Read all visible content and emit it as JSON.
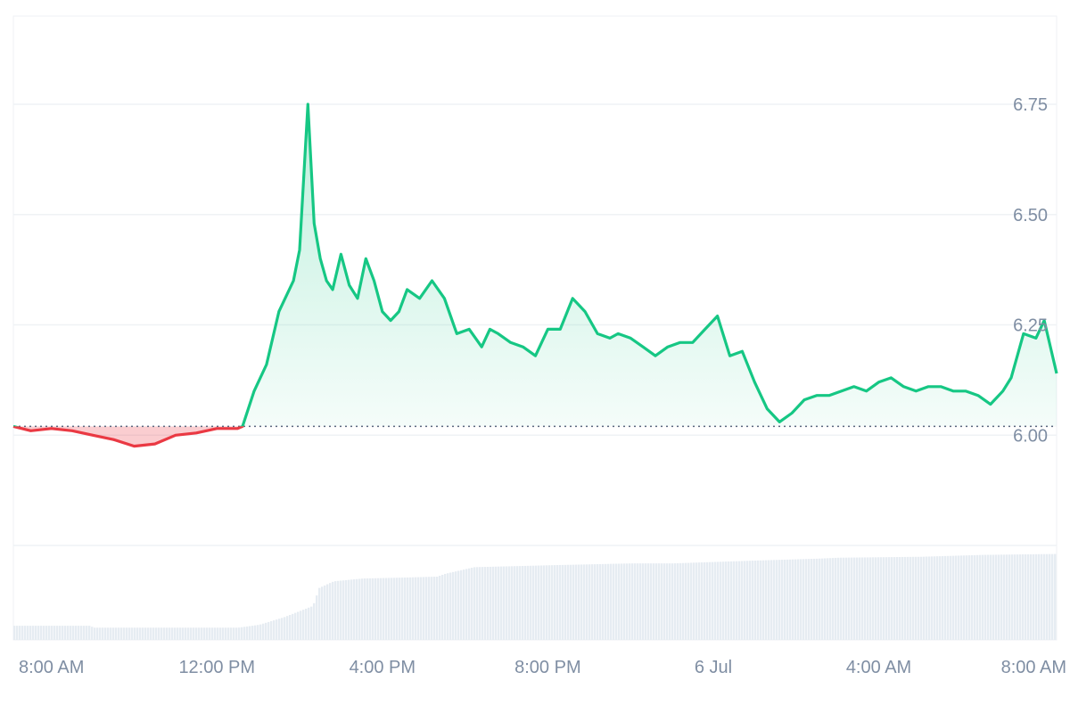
{
  "colors": {
    "up": "#16c784",
    "down": "#ea3943",
    "grid": "#eff2f5",
    "axis_text": "#7f8ea3",
    "baseline": "#58667e",
    "volume": "#e6ecf2"
  },
  "chart_data": {
    "type": "area",
    "title": "",
    "xlabel": "",
    "ylabel": "",
    "ylim": [
      5.75,
      6.95
    ],
    "grid": true,
    "legend": "none",
    "baseline": 6.02,
    "y_ticks": [
      "6.00",
      "6.25",
      "6.50",
      "6.75"
    ],
    "x_ticks": [
      {
        "label": "8:00 AM",
        "t": 8
      },
      {
        "label": "12:00 PM",
        "t": 12
      },
      {
        "label": "4:00 PM",
        "t": 16
      },
      {
        "label": "8:00 PM",
        "t": 20
      },
      {
        "label": "6 Jul",
        "t": 24
      },
      {
        "label": "4:00 AM",
        "t": 28
      },
      {
        "label": "8:00 AM",
        "t": 32
      }
    ],
    "x_range_hours": [
      7.08,
      32.3
    ],
    "price_series": {
      "name": "",
      "x_hours": [
        7.08,
        7.5,
        8,
        8.5,
        9,
        9.5,
        10,
        10.5,
        11,
        11.5,
        12,
        12.5,
        12.62,
        12.9,
        13.2,
        13.5,
        13.85,
        14,
        14.2,
        14.35,
        14.5,
        14.65,
        14.8,
        15,
        15.2,
        15.4,
        15.6,
        15.8,
        16,
        16.2,
        16.4,
        16.6,
        16.9,
        17.2,
        17.5,
        17.8,
        18.1,
        18.4,
        18.6,
        18.8,
        19.1,
        19.4,
        19.7,
        20,
        20.3,
        20.6,
        20.9,
        21.2,
        21.5,
        21.7,
        22,
        22.3,
        22.6,
        22.9,
        23.2,
        23.5,
        23.8,
        24.1,
        24.4,
        24.7,
        25,
        25.3,
        25.6,
        25.9,
        26.2,
        26.5,
        26.8,
        27.1,
        27.4,
        27.7,
        28,
        28.3,
        28.6,
        28.9,
        29.2,
        29.5,
        29.8,
        30.1,
        30.4,
        30.7,
        31,
        31.2,
        31.5,
        31.8,
        32,
        32.3
      ],
      "values": [
        6.02,
        6.01,
        6.015,
        6.01,
        6.0,
        5.99,
        5.975,
        5.98,
        6.0,
        6.005,
        6.015,
        6.015,
        6.02,
        6.1,
        6.16,
        6.28,
        6.35,
        6.42,
        6.75,
        6.48,
        6.4,
        6.35,
        6.33,
        6.41,
        6.34,
        6.31,
        6.4,
        6.35,
        6.28,
        6.26,
        6.28,
        6.33,
        6.31,
        6.35,
        6.31,
        6.23,
        6.24,
        6.2,
        6.24,
        6.23,
        6.21,
        6.2,
        6.18,
        6.24,
        6.24,
        6.31,
        6.28,
        6.23,
        6.22,
        6.23,
        6.22,
        6.2,
        6.18,
        6.2,
        6.21,
        6.21,
        6.24,
        6.27,
        6.18,
        6.19,
        6.12,
        6.06,
        6.03,
        6.05,
        6.08,
        6.09,
        6.09,
        6.1,
        6.11,
        6.1,
        6.12,
        6.13,
        6.11,
        6.1,
        6.11,
        6.11,
        6.1,
        6.1,
        6.09,
        6.07,
        6.1,
        6.13,
        6.23,
        6.22,
        6.26,
        6.14
      ]
    },
    "volume_series": {
      "name": "",
      "x_hours": [
        7.08,
        8.9,
        9,
        12.5,
        13,
        13.6,
        14.3,
        14.45,
        14.8,
        15.5,
        16.5,
        17.3,
        17.5,
        18.2,
        20,
        21,
        22,
        23,
        25,
        26.5,
        27,
        29,
        30.5,
        32.3
      ],
      "values": [
        0.15,
        0.15,
        0.13,
        0.13,
        0.16,
        0.24,
        0.36,
        0.55,
        0.62,
        0.65,
        0.66,
        0.67,
        0.7,
        0.77,
        0.79,
        0.8,
        0.81,
        0.81,
        0.84,
        0.86,
        0.87,
        0.88,
        0.9,
        0.91
      ]
    }
  }
}
